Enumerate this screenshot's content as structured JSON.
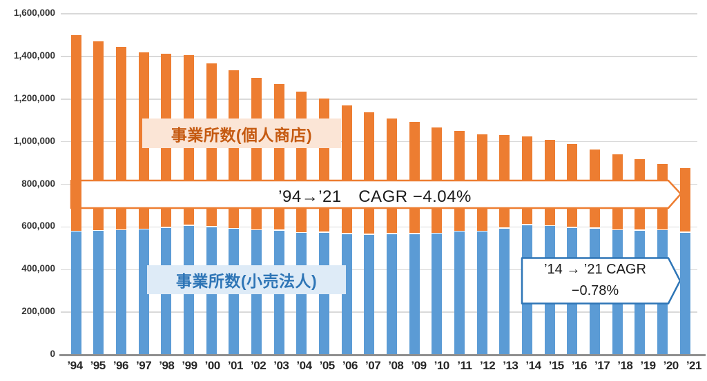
{
  "chart_data": {
    "type": "bar",
    "stacked": true,
    "title": "",
    "categories": [
      "’94",
      "’95",
      "’96",
      "’97",
      "’98",
      "’99",
      "’00",
      "’01",
      "’02",
      "’03",
      "’04",
      "’05",
      "’06",
      "’07",
      "’08",
      "’09",
      "’10",
      "’11",
      "’12",
      "’13",
      "’14",
      "’15",
      "’16",
      "’17",
      "’18",
      "’19",
      "’20",
      "’21"
    ],
    "series": [
      {
        "name": "事業所数(小売法人)",
        "color": "#5B9BD5",
        "values": [
          578000,
          581000,
          584000,
          587000,
          595000,
          606000,
          598000,
          590000,
          585000,
          582000,
          571000,
          573000,
          566000,
          563000,
          566000,
          566000,
          568000,
          578000,
          578000,
          592000,
          608000,
          603000,
          596000,
          592000,
          585000,
          582000,
          585000,
          573000
        ]
      },
      {
        "name": "事業所数(個人商店)",
        "color": "#ED7D31",
        "values": [
          922000,
          890000,
          861000,
          832000,
          816000,
          800000,
          770000,
          746000,
          715000,
          688000,
          665000,
          628000,
          603000,
          574000,
          544000,
          525000,
          499000,
          472000,
          456000,
          439000,
          416000,
          406000,
          393000,
          370000,
          355000,
          336000,
          309000,
          302000
        ]
      }
    ],
    "ylim": [
      0,
      1600000
    ],
    "ytick_interval": 200000,
    "ytick_labels": [
      "0",
      "200,000",
      "400,000",
      "600,000",
      "800,000",
      "1,000,000",
      "1,200,000",
      "1,400,000",
      "1,600,000"
    ],
    "grid": true,
    "legend_position": "inline-floating-labels",
    "annotations": {
      "cagr_total": {
        "text": "’94→’21　CAGR −4.04%"
      },
      "cagr_recent": {
        "line1": "’14 → ’21 CAGR",
        "line2": "−0.78%"
      }
    },
    "colors": {
      "personal_bar": "#ED7D31",
      "corporate_bar": "#5B9BD5",
      "personal_label_bg": "#FBE5D6",
      "personal_label_text": "#C55A11",
      "corporate_label_bg": "#DEEBF7",
      "corporate_label_text": "#2E75B6",
      "gridline": "#D9D9D9",
      "axis_line": "#8F8F8F",
      "tick_text": "#333333",
      "annotation_text": "#1A1A1A"
    }
  }
}
